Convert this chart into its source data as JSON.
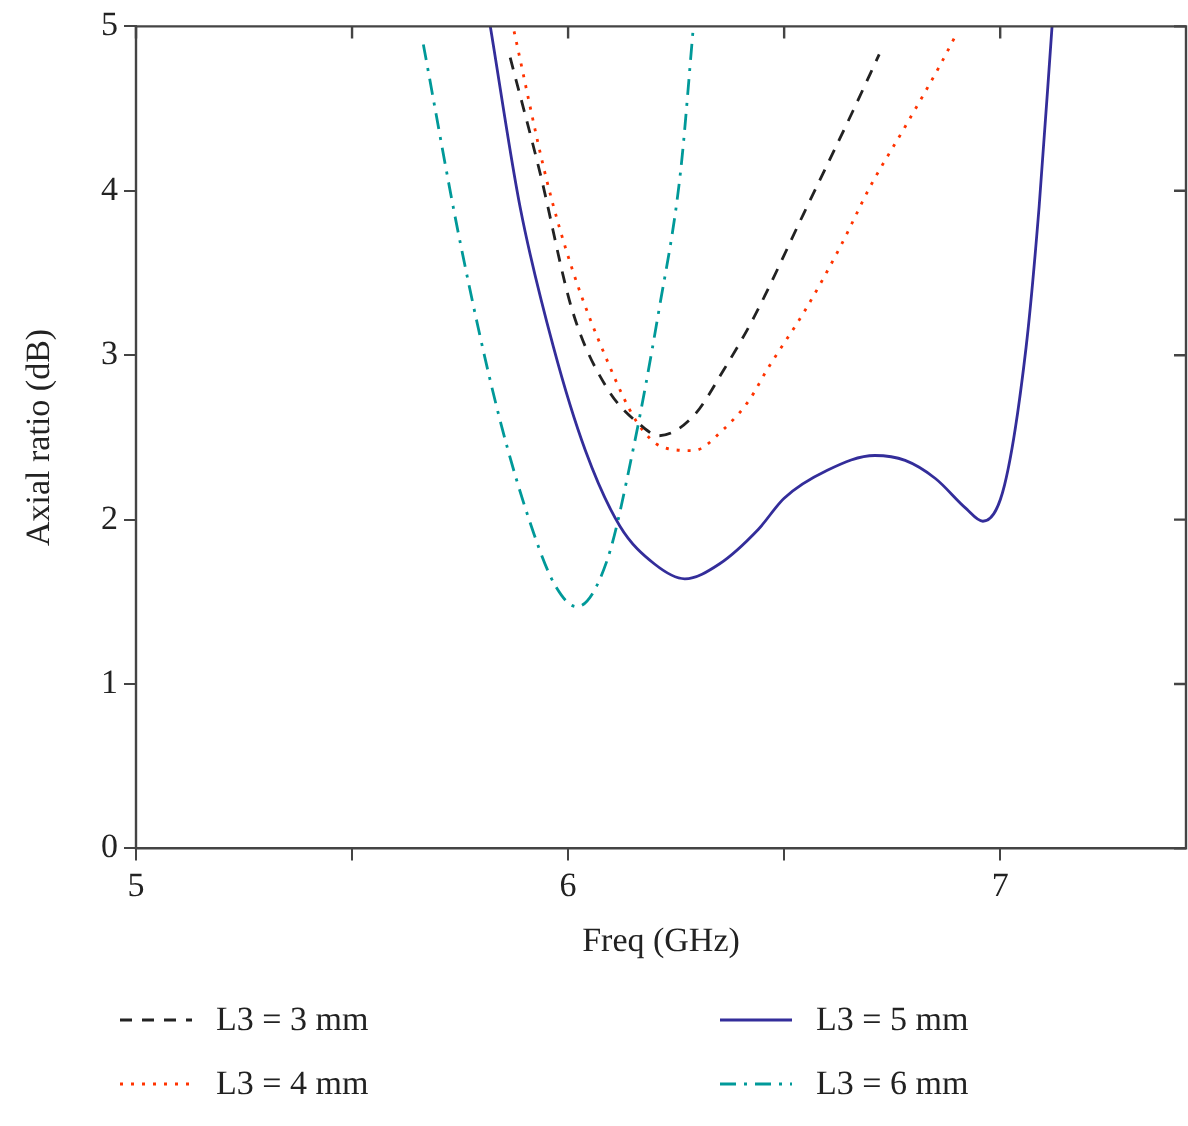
{
  "chart_data": {
    "type": "line",
    "xlabel": "Freq (GHz)",
    "ylabel": "Axial ratio (dB)",
    "xlim": [
      5,
      7.43
    ],
    "ylim": [
      0,
      5
    ],
    "xticks": [
      5,
      {
        "value": 5.5,
        "label": null
      },
      6,
      {
        "value": 6.5,
        "label": null
      },
      7
    ],
    "yticks": [
      0,
      1,
      2,
      3,
      4,
      5
    ],
    "grid": false,
    "legend": "bottom",
    "marker": "none",
    "series": [
      {
        "name": "L3 = 3 mm",
        "color": "#222222",
        "line_style": "dashed",
        "x": [
          5.866,
          5.935,
          6.01,
          6.09,
          6.17,
          6.21,
          6.29,
          6.36,
          6.43,
          6.545,
          6.66,
          6.72
        ],
        "values": [
          4.81,
          4.11,
          3.27,
          2.8,
          2.57,
          2.51,
          2.63,
          2.91,
          3.23,
          3.86,
          4.49,
          4.83
        ]
      },
      {
        "name": "L3 = 4 mm",
        "color": "#ff3300",
        "line_style": "dotted",
        "x": [
          5.875,
          5.95,
          6.01,
          6.09,
          6.16,
          6.22,
          6.29,
          6.36,
          6.42,
          6.46,
          6.55,
          6.63,
          6.7,
          6.78,
          6.86,
          6.9
        ],
        "values": [
          4.97,
          4.07,
          3.52,
          2.97,
          2.59,
          2.44,
          2.42,
          2.55,
          2.73,
          2.91,
          3.28,
          3.66,
          4.03,
          4.39,
          4.76,
          4.96
        ]
      },
      {
        "name": "L3 = 5 mm",
        "color": "#332d9a",
        "line_style": "solid",
        "x": [
          5.82,
          5.889,
          5.966,
          6.04,
          6.12,
          6.2,
          6.27,
          6.35,
          6.44,
          6.5,
          6.6,
          6.71,
          6.78,
          6.85,
          6.92,
          6.96,
          7.01,
          7.06,
          7.09,
          7.12
        ],
        "values": [
          5,
          3.9,
          3.05,
          2.42,
          1.96,
          1.73,
          1.64,
          1.73,
          1.94,
          2.13,
          2.3,
          2.39,
          2.36,
          2.25,
          2.07,
          1.99,
          2.21,
          3.05,
          3.9,
          5
        ]
      },
      {
        "name": "L3 = 6 mm",
        "color": "#009999",
        "line_style": "dashdot",
        "x": [
          5.665,
          5.75,
          5.84,
          5.92,
          5.97,
          6.02,
          6.09,
          6.15,
          6.21,
          6.26,
          6.29
        ],
        "values": [
          4.89,
          3.69,
          2.63,
          1.92,
          1.6,
          1.47,
          1.75,
          2.42,
          3.27,
          4.11,
          5
        ]
      }
    ]
  }
}
